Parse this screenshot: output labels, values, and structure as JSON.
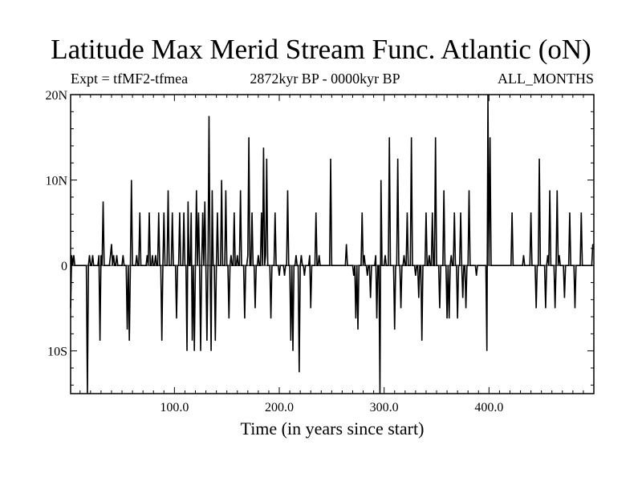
{
  "chart_data": {
    "type": "line",
    "title": "Latitude Max Merid Stream Func. Atlantic (oN)",
    "subtitle_left": "Expt = tfMF2-tfmea",
    "subtitle_center": "2872kyr BP - 0000kyr BP",
    "subtitle_right": "ALL_MONTHS",
    "xlabel": "Time (in years since start)",
    "ylabel": "",
    "xlim": [
      1,
      500
    ],
    "ylim": [
      -15,
      20
    ],
    "x_ticks": [
      {
        "value": 100,
        "label": "100.0"
      },
      {
        "value": 200,
        "label": "200.0"
      },
      {
        "value": 300,
        "label": "300.0"
      },
      {
        "value": 400,
        "label": "400.0"
      }
    ],
    "y_ticks": [
      {
        "value": 20,
        "label": "20N"
      },
      {
        "value": 10,
        "label": "10N"
      },
      {
        "value": 0,
        "label": "0"
      },
      {
        "value": -10,
        "label": "10S"
      }
    ],
    "zero_line": true,
    "grid": false,
    "series": [
      {
        "x_start": 1,
        "x_step": 1,
        "values": [
          -5,
          1.2,
          0,
          1.2,
          0,
          0,
          0,
          0,
          0,
          0,
          0,
          0,
          0,
          0,
          0,
          0,
          -15,
          0,
          1.2,
          0,
          0,
          1.2,
          0,
          0,
          0,
          0,
          0,
          1.2,
          -8.8,
          1.2,
          0,
          7.5,
          0,
          0,
          0,
          0,
          0,
          0,
          1.2,
          2.5,
          0,
          1.2,
          0,
          0,
          1.2,
          0,
          0,
          0,
          0,
          0,
          1.2,
          0,
          0,
          0,
          -7.5,
          0,
          -8.8,
          0,
          10,
          0,
          0,
          0,
          0,
          1.2,
          0,
          0,
          6.2,
          0,
          0,
          0,
          0,
          0,
          0,
          1.2,
          0,
          6.2,
          0,
          0,
          1.2,
          0,
          0,
          1.2,
          0,
          0,
          6.2,
          0,
          0,
          -8.8,
          0,
          6.2,
          0,
          0,
          0,
          8.8,
          0,
          0,
          0,
          6.2,
          0,
          0,
          0,
          -6.2,
          0,
          0,
          6.2,
          0,
          0,
          0,
          6.2,
          0,
          0,
          -10,
          7.5,
          0,
          0,
          6.2,
          -8.8,
          0,
          -10,
          0,
          8.8,
          0,
          6.2,
          0,
          -10,
          0,
          6.2,
          0,
          7.5,
          0,
          -8.8,
          0,
          17.5,
          0,
          -10,
          8.8,
          0,
          0,
          -8.8,
          0,
          6.2,
          0,
          0,
          0,
          10,
          0,
          0,
          0,
          8.8,
          0,
          0,
          -6.2,
          0,
          1.2,
          0,
          0,
          6.2,
          0,
          0,
          1.2,
          0,
          0,
          8.8,
          0,
          0,
          0,
          -6.2,
          0,
          0,
          1.2,
          15,
          0,
          0,
          6.2,
          0,
          0,
          -5,
          0,
          0,
          1.2,
          0,
          0,
          6.2,
          0,
          13.8,
          0,
          1.2,
          12.5,
          0,
          0,
          0,
          -6.2,
          0,
          0,
          0,
          6.2,
          0,
          0,
          0,
          -1.2,
          0,
          0,
          0,
          0,
          -1.2,
          0,
          0,
          8.8,
          0,
          0,
          -8.8,
          0,
          -10,
          0,
          0,
          1.2,
          0,
          0,
          -12.5,
          0,
          1.2,
          0,
          0,
          -1.2,
          0,
          0,
          0,
          0,
          1.2,
          -5,
          0,
          0,
          0,
          0,
          6.2,
          0,
          0,
          1.2,
          0,
          0,
          0,
          0,
          0,
          0,
          0,
          0,
          0,
          0,
          12.5,
          0,
          0,
          0,
          0,
          0,
          0,
          0,
          0,
          0,
          0,
          0,
          0,
          0,
          0,
          2.5,
          0,
          0,
          0,
          0,
          0,
          0,
          -1.2,
          0,
          -6.2,
          0,
          -7.5,
          0,
          0,
          0,
          6.2,
          0,
          1.2,
          0,
          0,
          -1.2,
          0,
          0,
          -3.8,
          0,
          0,
          0,
          0,
          1.2,
          -6.2,
          0,
          0,
          -15,
          10,
          0,
          0,
          0,
          1.2,
          0,
          0,
          0,
          15,
          0,
          0,
          0,
          0,
          -7.5,
          0,
          0,
          12.5,
          0,
          0,
          -5,
          0,
          0,
          1.2,
          0,
          0,
          6.2,
          0,
          0,
          0,
          15,
          0,
          0,
          0,
          -1.2,
          0,
          0,
          -3.8,
          0,
          0,
          -8.8,
          0,
          0,
          0,
          6.2,
          0,
          0,
          1.2,
          0,
          0,
          6.2,
          0,
          0,
          15,
          0,
          0,
          0,
          -5,
          0,
          0,
          0,
          8.8,
          0,
          0,
          -6.2,
          0,
          -6.2,
          0,
          1.2,
          0,
          0,
          6.2,
          0,
          0,
          -6.2,
          0,
          0,
          6.2,
          0,
          -3.8,
          0,
          0,
          -5,
          0,
          0,
          8.8,
          0,
          0,
          0,
          0,
          0,
          0,
          -1.2,
          0,
          0,
          0,
          0,
          0,
          0,
          0,
          0,
          0,
          -10,
          20,
          0,
          15,
          0,
          0,
          0,
          0,
          0,
          0,
          0,
          0,
          0,
          0,
          0,
          0,
          0,
          0,
          0,
          0,
          0,
          0,
          0,
          0,
          6.2,
          0,
          0,
          0,
          0,
          0,
          0,
          0,
          0,
          0,
          0,
          1.2,
          0,
          0,
          0,
          0,
          0,
          0,
          6.2,
          0,
          0,
          0,
          0,
          -5,
          0,
          0,
          12.5,
          0,
          0,
          0,
          0,
          0,
          -5,
          0,
          1.2,
          0,
          8.8,
          0,
          0,
          0,
          0,
          -5,
          0,
          8.8,
          0,
          1.2,
          0,
          0,
          0,
          0,
          -3.8,
          0,
          0,
          0,
          0,
          6.2,
          0,
          0,
          0,
          0,
          -5,
          0,
          0,
          0,
          0,
          0,
          6.2,
          0,
          0,
          0,
          0,
          0,
          0,
          0,
          0,
          0,
          0,
          2.5
        ]
      }
    ]
  }
}
